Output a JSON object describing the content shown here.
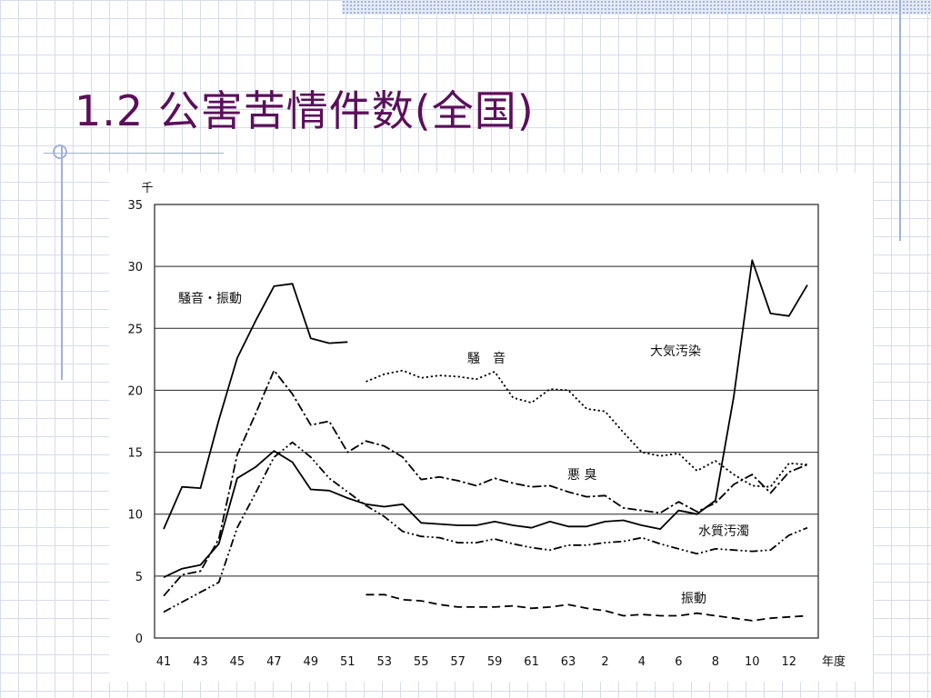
{
  "slide": {
    "title": "1.2 公害苦情件数(全国)"
  },
  "chart_data": {
    "type": "line",
    "title": "",
    "ylabel": "千",
    "xlabel": "年度",
    "ylim": [
      0,
      35
    ],
    "yticks": [
      0,
      5,
      10,
      15,
      20,
      25,
      30,
      35
    ],
    "grid": "horizontal",
    "x": [
      "41",
      "42",
      "43",
      "44",
      "45",
      "46",
      "47",
      "48",
      "49",
      "50",
      "51",
      "52",
      "53",
      "54",
      "55",
      "56",
      "57",
      "58",
      "59",
      "60",
      "61",
      "62",
      "63",
      "1",
      "2",
      "3",
      "4",
      "5",
      "6",
      "7",
      "8",
      "9",
      "10",
      "11",
      "12",
      "13"
    ],
    "xtick_labels": [
      "41",
      "43",
      "45",
      "47",
      "49",
      "51",
      "53",
      "55",
      "57",
      "59",
      "61",
      "63",
      "2",
      "4",
      "6",
      "8",
      "10",
      "12"
    ],
    "series": [
      {
        "name": "大気汚染",
        "style": "solid",
        "values": [
          null,
          null,
          null,
          null,
          null,
          null,
          null,
          null,
          null,
          null,
          null,
          null,
          null,
          null,
          null,
          null,
          null,
          null,
          null,
          null,
          null,
          null,
          null,
          null,
          null,
          null,
          null,
          null,
          10.3,
          10.0,
          11.1,
          19.5,
          30.5,
          26.2,
          26.0,
          28.5
        ]
      },
      {
        "name": "騒音・振動",
        "style": "solid",
        "values": [
          8.8,
          12.2,
          12.1,
          17.6,
          22.6,
          25.6,
          28.4,
          28.6,
          24.2,
          23.8,
          23.9,
          null,
          null,
          null,
          null,
          null,
          null,
          null,
          null,
          null,
          null,
          null,
          null,
          null,
          null,
          null,
          null,
          null,
          null,
          null,
          null,
          null,
          null,
          null,
          null,
          null
        ]
      },
      {
        "name": "騒　音",
        "style": "dotted",
        "values": [
          null,
          null,
          null,
          null,
          null,
          null,
          null,
          null,
          null,
          null,
          null,
          20.7,
          21.3,
          21.6,
          21.0,
          21.2,
          21.1,
          20.9,
          21.5,
          19.4,
          19.0,
          20.1,
          20.0,
          18.5,
          18.3,
          16.6,
          15.0,
          14.7,
          14.9,
          13.5,
          14.3,
          13.2,
          12.3,
          12.2,
          14.1,
          14.0
        ]
      },
      {
        "name": "悪 臭",
        "style": "dashdot",
        "values": [
          3.4,
          5.1,
          5.4,
          8.0,
          14.8,
          18.1,
          21.6,
          19.7,
          17.2,
          17.5,
          15.0,
          15.9,
          15.5,
          14.6,
          12.8,
          13.0,
          12.7,
          12.3,
          12.9,
          12.5,
          12.2,
          12.3,
          11.8,
          11.4,
          11.5,
          10.5,
          10.3,
          10.1,
          11.0,
          10.2,
          10.9,
          12.4,
          13.2,
          11.7,
          13.4,
          14.0
        ]
      },
      {
        "name": "水質汚濁",
        "style": "dashdotdot",
        "values": [
          2.1,
          2.9,
          3.7,
          4.5,
          8.9,
          11.7,
          14.6,
          15.8,
          14.6,
          12.9,
          11.8,
          10.7,
          9.8,
          8.6,
          8.2,
          8.1,
          7.7,
          7.7,
          8.0,
          7.6,
          7.3,
          7.1,
          7.5,
          7.5,
          7.7,
          7.8,
          8.1,
          7.6,
          7.2,
          6.8,
          7.2,
          7.1,
          7.0,
          7.1,
          8.3,
          8.9
        ]
      },
      {
        "name": "振動",
        "style": "dashed",
        "values": [
          null,
          null,
          null,
          null,
          null,
          null,
          null,
          null,
          null,
          null,
          null,
          3.5,
          3.5,
          3.1,
          3.0,
          2.7,
          2.5,
          2.5,
          2.5,
          2.6,
          2.4,
          2.5,
          2.7,
          2.4,
          2.2,
          1.8,
          1.9,
          1.8,
          1.8,
          2.0,
          1.8,
          1.6,
          1.4,
          1.6,
          1.7,
          1.8
        ]
      },
      {
        "name": "",
        "style": "solid",
        "values": [
          4.9,
          5.6,
          5.9,
          7.6,
          12.9,
          13.8,
          15.1,
          14.2,
          12.0,
          11.9,
          11.3,
          10.8,
          10.6,
          10.8,
          9.3,
          9.2,
          9.1,
          9.1,
          9.4,
          9.1,
          8.9,
          9.4,
          9.0,
          9.0,
          9.4,
          9.5,
          9.1,
          8.8,
          10.3,
          10.0,
          11.1,
          null,
          null,
          null,
          null,
          null
        ]
      }
    ]
  }
}
